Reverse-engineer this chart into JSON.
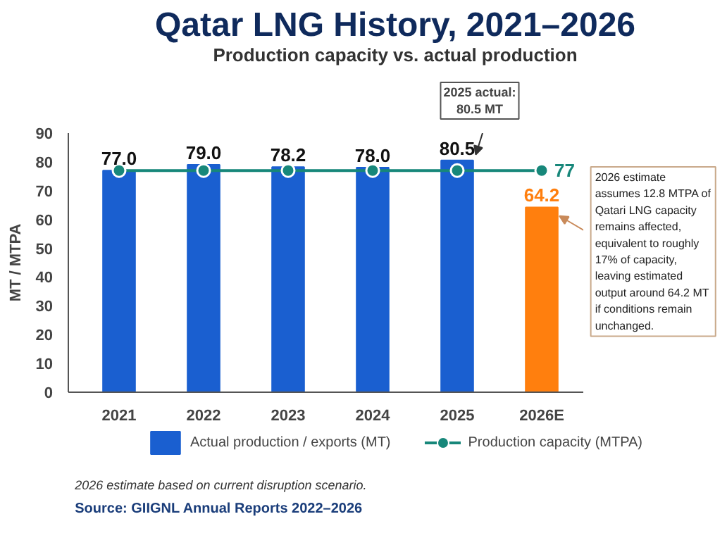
{
  "chart_data": {
    "type": "bar",
    "title": "Qatar LNG History, 2021–2026",
    "subtitle": "Production capacity vs. actual production",
    "ylabel": "MT / MTPA",
    "categories": [
      "2021",
      "2022",
      "2023",
      "2024",
      "2025",
      "2026E"
    ],
    "ylim": [
      0,
      90
    ],
    "yticks": [
      0,
      10,
      20,
      30,
      40,
      50,
      60,
      70,
      80,
      90
    ],
    "legend": "bottom",
    "marker": "circle",
    "series": [
      {
        "name": "Actual production / exports (MT)",
        "color": "#1a5fd0",
        "colors": [
          "#1a5fd0",
          "#1a5fd0",
          "#1a5fd0",
          "#1a5fd0",
          "#1a5fd0",
          "#ff7f0e"
        ],
        "values": [
          77.0,
          79.0,
          78.2,
          78.0,
          80.5,
          64.2
        ],
        "value_labels": [
          "77.0",
          "79.0",
          "78.2",
          "78.0",
          "80.5",
          "64.2"
        ]
      },
      {
        "name": "Production capacity (MTPA)",
        "type": "line",
        "color": "#17877a",
        "values": [
          77,
          77,
          77,
          77,
          77,
          77
        ],
        "value_labels": [
          null,
          null,
          null,
          null,
          null,
          "77"
        ]
      }
    ],
    "annotations": [
      "2025 actual:\n80.5 MT",
      "2026 estimate\nassumes 12.8 MTPA of Qatari LNG capacity remains affected, equivalent to roughly 17% of capacity, leaving estimated output around 64.2 MT if conditions remain unchanged.",
      "2026 estimate based on current disruption scenario.",
      "Source: GIIGNL Annual Reports 2022–2026"
    ]
  }
}
